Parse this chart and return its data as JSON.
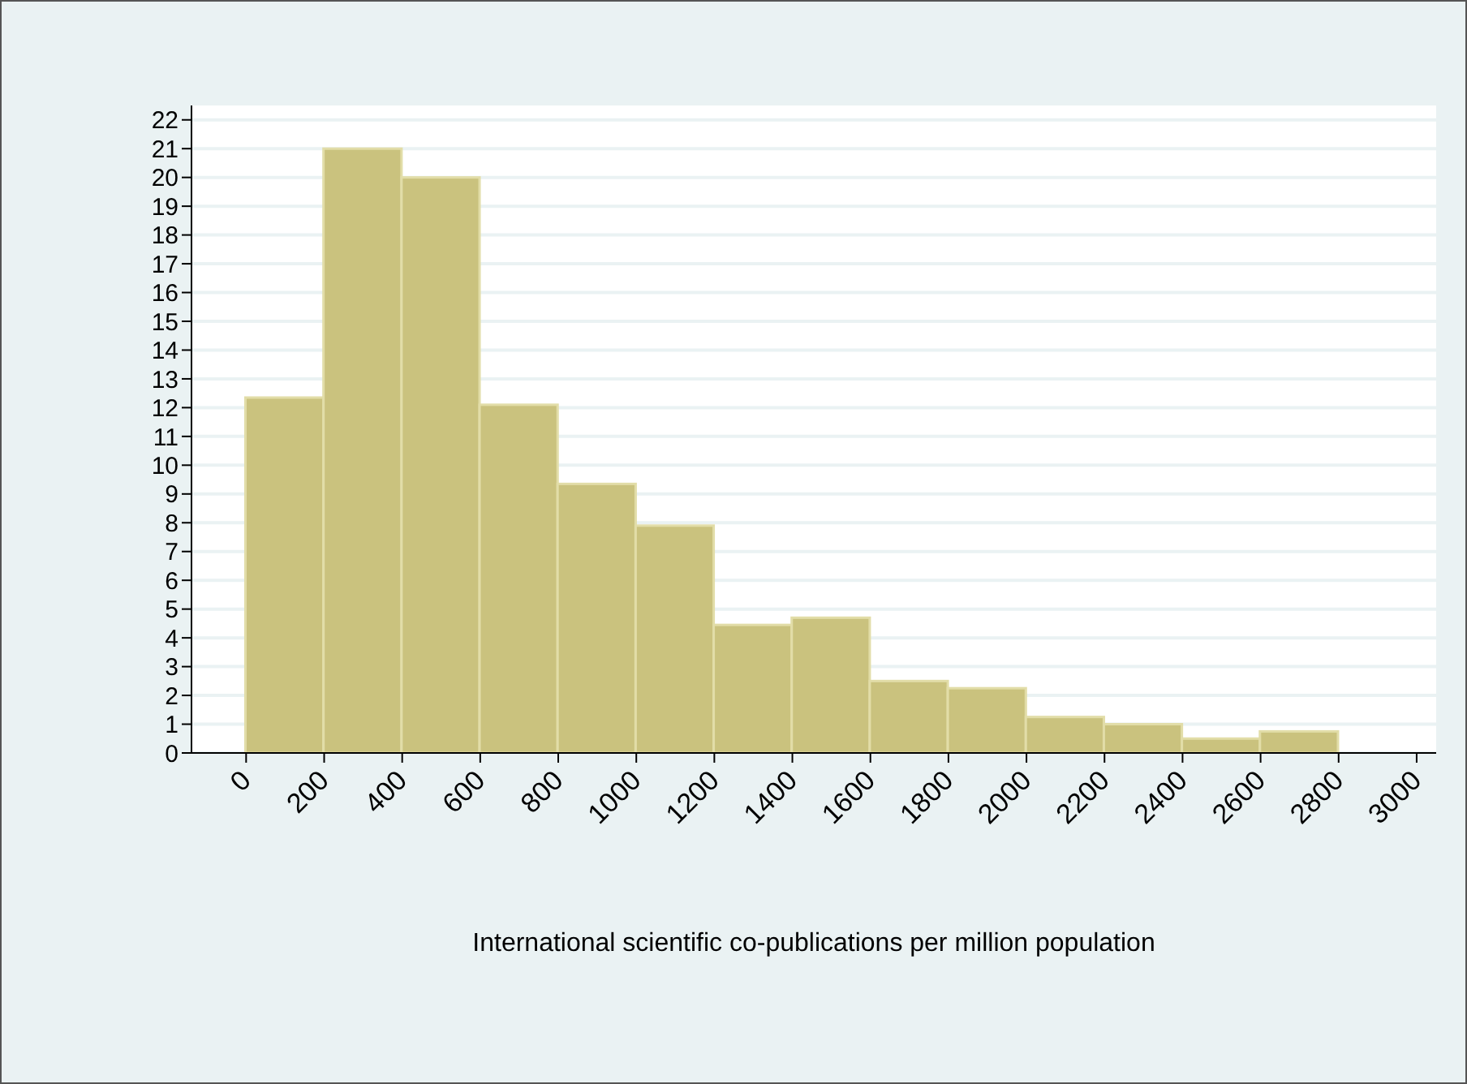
{
  "chart_data": {
    "type": "histogram",
    "xlabel": "International scientific co-publications per million population",
    "bins": [
      0,
      200,
      400,
      600,
      800,
      1000,
      1200,
      1400,
      1600,
      1800,
      2000,
      2200,
      2400,
      2600,
      2800
    ],
    "values": [
      12.35,
      21,
      20,
      12.1,
      9.35,
      7.9,
      4.45,
      4.7,
      2.5,
      2.25,
      1.25,
      1.0,
      0.5,
      0.75
    ],
    "color": "#cac27e",
    "xlim": [
      -140,
      3050
    ],
    "xticks": [
      0,
      200,
      400,
      600,
      800,
      1000,
      1200,
      1400,
      1600,
      1800,
      2000,
      2200,
      2400,
      2600,
      2800,
      3000
    ],
    "ylim": [
      0,
      22.5
    ],
    "yticks": [
      0,
      1,
      2,
      3,
      4,
      5,
      6,
      7,
      8,
      9,
      10,
      11,
      12,
      13,
      14,
      15,
      16,
      17,
      18,
      19,
      20,
      21,
      22
    ],
    "grid": "y"
  }
}
